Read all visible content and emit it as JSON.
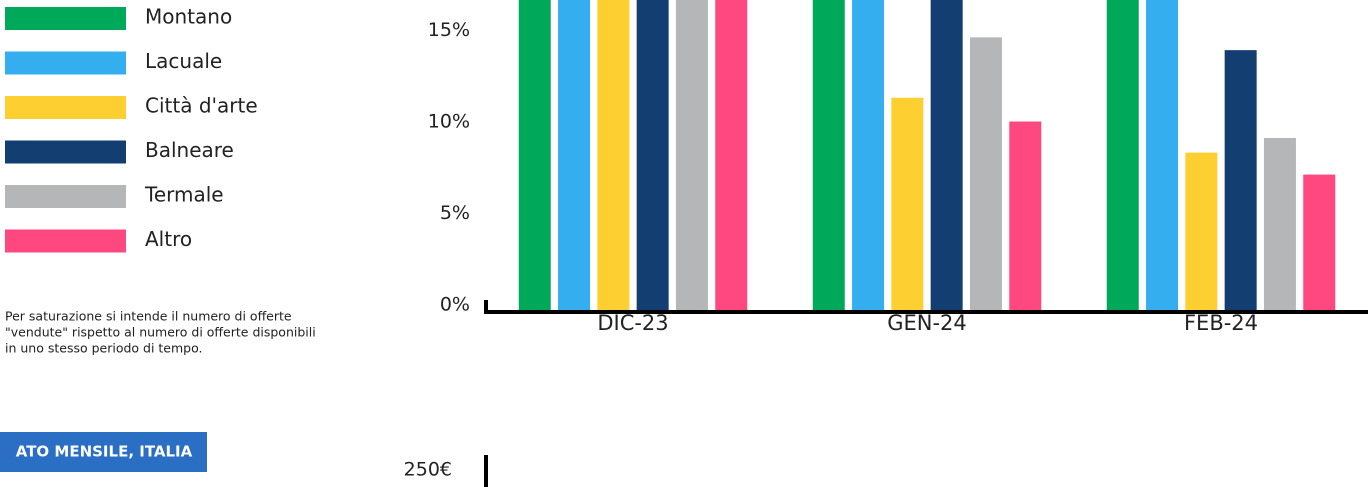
{
  "chart_data": {
    "type": "bar",
    "categories": [
      "DIC-23",
      "GEN-24",
      "FEB-24"
    ],
    "series": [
      {
        "name": "Montano",
        "color": "#00a85a",
        "values": [
          19,
          19,
          19
        ]
      },
      {
        "name": "Lacuale",
        "color": "#35aef0",
        "values": [
          18.5,
          18,
          18
        ]
      },
      {
        "name": "Città d'arte",
        "color": "#fdcf30",
        "values": [
          18,
          11.6,
          8.6
        ]
      },
      {
        "name": "Balneare",
        "color": "#123e72",
        "values": [
          19,
          18.5,
          14.2
        ]
      },
      {
        "name": "Termale",
        "color": "#b5b6b8",
        "values": [
          18,
          14.9,
          9.4
        ]
      },
      {
        "name": "Altro",
        "color": "#ff4880",
        "values": [
          18,
          10.3,
          7.4
        ]
      }
    ],
    "ylim": [
      0,
      20
    ],
    "yticks": [
      {
        "value": 0,
        "label": "0%"
      },
      {
        "value": 5,
        "label": "5%"
      },
      {
        "value": 10,
        "label": "10%"
      },
      {
        "value": 15,
        "label": "15%"
      }
    ]
  },
  "note": [
    "Per saturazione si intende il numero di offerte",
    "\"vendute\" rispetto al numero di offerte disponibili",
    "in uno stesso periodo di tempo."
  ],
  "section_button": "ATO MENSILE, ITALIA",
  "next_chart": {
    "ytick": {
      "value": 250,
      "label": "250€"
    }
  }
}
